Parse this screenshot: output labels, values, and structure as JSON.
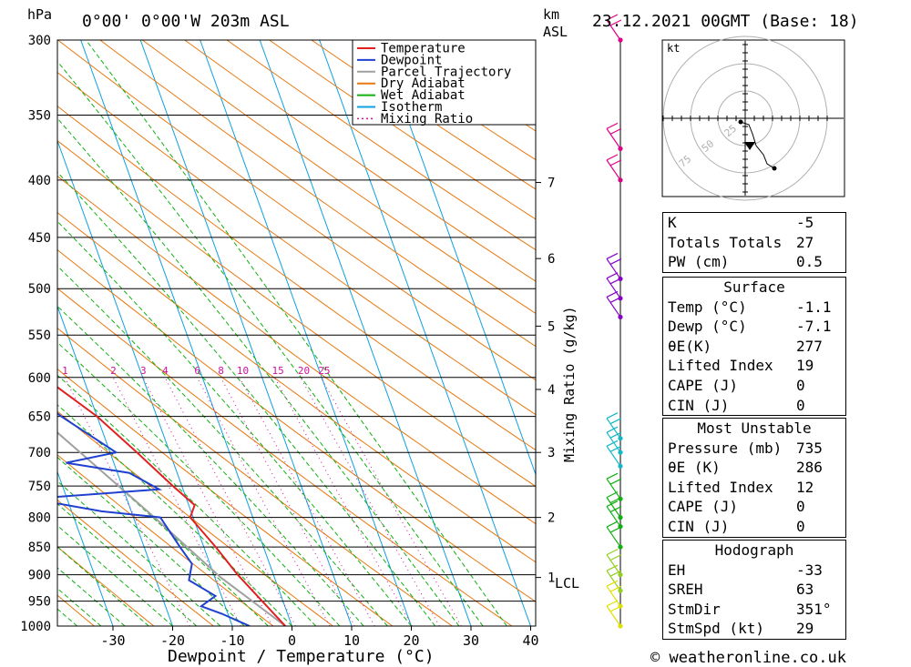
{
  "header": {
    "units_label": "hPa",
    "location": "0°00' 0°00'W 203m ASL",
    "km_label": "km",
    "asl_label": "ASL",
    "date": "23.12.2021 00GMT (Base: 18)"
  },
  "legend": [
    {
      "label": "Temperature",
      "color": "#e02020",
      "dash": false
    },
    {
      "label": "Dewpoint",
      "color": "#2040d0",
      "dash": false
    },
    {
      "label": "Parcel Trajectory",
      "color": "#a0a0a0",
      "dash": false
    },
    {
      "label": "Dry Adiabat",
      "color": "#e87810",
      "dash": false
    },
    {
      "label": "Wet Adiabat",
      "color": "#10b010",
      "dash": false
    },
    {
      "label": "Isotherm",
      "color": "#10a0e0",
      "dash": false
    },
    {
      "label": "Mixing Ratio",
      "color": "#d010a0",
      "dash": true
    }
  ],
  "chart_data": {
    "type": "skew-t",
    "xlabel": "Dewpoint / Temperature (°C)",
    "ylabel": "hPa",
    "right_axis_label": "Mixing Ratio (g/kg)",
    "pressure_levels": [
      300,
      350,
      400,
      450,
      500,
      550,
      600,
      650,
      700,
      750,
      800,
      850,
      900,
      950,
      1000
    ],
    "x_ticks": [
      -30,
      -20,
      -10,
      0,
      10,
      20,
      30,
      40
    ],
    "height_km": [
      {
        "label": "7",
        "p": 402
      },
      {
        "label": "6",
        "p": 470
      },
      {
        "label": "5",
        "p": 540
      },
      {
        "label": "4",
        "p": 615
      },
      {
        "label": "3",
        "p": 700
      },
      {
        "label": "2",
        "p": 800
      },
      {
        "label": "1",
        "p": 905
      }
    ],
    "lcl_label": "LCL",
    "mixing_ratio_labels": [
      "1",
      "2",
      "3",
      "4",
      "6",
      "8",
      "10",
      "15",
      "20",
      "25"
    ],
    "mixing_ratio_values": [
      1,
      2,
      3,
      4,
      6,
      8,
      10,
      15,
      20,
      25
    ],
    "temperature": [
      {
        "p": 1000,
        "t": -1.1
      },
      {
        "p": 950,
        "t": -3.5
      },
      {
        "p": 900,
        "t": -6.0
      },
      {
        "p": 850,
        "t": -8.0
      },
      {
        "p": 800,
        "t": -10.5
      },
      {
        "p": 780,
        "t": -9.0
      },
      {
        "p": 750,
        "t": -11.5
      },
      {
        "p": 700,
        "t": -15.5
      },
      {
        "p": 650,
        "t": -20.0
      },
      {
        "p": 600,
        "t": -26.5
      },
      {
        "p": 590,
        "t": -28.5
      },
      {
        "p": 570,
        "t": -28.0
      },
      {
        "p": 550,
        "t": -30.0
      },
      {
        "p": 500,
        "t": -34.5
      },
      {
        "p": 460,
        "t": -40.0
      },
      {
        "p": 400,
        "t": -47.0
      },
      {
        "p": 350,
        "t": -53.0
      },
      {
        "p": 300,
        "t": -59.0
      }
    ],
    "dewpoint": [
      {
        "p": 1000,
        "t": -7.1
      },
      {
        "p": 975,
        "t": -11.0
      },
      {
        "p": 960,
        "t": -14.0
      },
      {
        "p": 940,
        "t": -11.0
      },
      {
        "p": 910,
        "t": -14.5
      },
      {
        "p": 880,
        "t": -13.0
      },
      {
        "p": 850,
        "t": -14.0
      },
      {
        "p": 800,
        "t": -15.5
      },
      {
        "p": 790,
        "t": -25.0
      },
      {
        "p": 770,
        "t": -36.0
      },
      {
        "p": 755,
        "t": -14.0
      },
      {
        "p": 730,
        "t": -18.0
      },
      {
        "p": 715,
        "t": -28.0
      },
      {
        "p": 700,
        "t": -19.0
      },
      {
        "p": 650,
        "t": -26.0
      },
      {
        "p": 590,
        "t": -33.0
      },
      {
        "p": 560,
        "t": -41.0
      },
      {
        "p": 510,
        "t": -46.0
      },
      {
        "p": 500,
        "t": -44.0
      },
      {
        "p": 470,
        "t": -55.0
      },
      {
        "p": 435,
        "t": -45.0
      },
      {
        "p": 400,
        "t": -54.0
      },
      {
        "p": 300,
        "t": -73.0
      }
    ],
    "parcel": [
      {
        "p": 1000,
        "t": -1.1
      },
      {
        "p": 905,
        "t": -9.0
      },
      {
        "p": 800,
        "t": -16.5
      },
      {
        "p": 700,
        "t": -25.0
      },
      {
        "p": 600,
        "t": -35.0
      },
      {
        "p": 500,
        "t": -48.0
      },
      {
        "p": 400,
        "t": -63.0
      },
      {
        "p": 300,
        "t": -82.0
      }
    ],
    "wind_levels_hpa": [
      300,
      375,
      400,
      490,
      510,
      530,
      680,
      700,
      720,
      770,
      800,
      815,
      850,
      900,
      930,
      960,
      1000
    ]
  },
  "hodograph": {
    "unit_label": "kt",
    "ring_labels": [
      "25",
      "50",
      "75"
    ]
  },
  "indices": {
    "k": {
      "label": "K",
      "value": "-5"
    },
    "totals": {
      "label": "Totals Totals",
      "value": "27"
    },
    "pw": {
      "label": "PW (cm)",
      "value": "0.5"
    },
    "surface": {
      "title": "Surface",
      "rows": [
        {
          "label": "Temp (°C)",
          "value": "-1.1"
        },
        {
          "label": "Dewp (°C)",
          "value": "-7.1"
        },
        {
          "label": "θE(K)",
          "value": "277"
        },
        {
          "label": "Lifted Index",
          "value": "19"
        },
        {
          "label": "CAPE (J)",
          "value": "0"
        },
        {
          "label": "CIN (J)",
          "value": "0"
        }
      ]
    },
    "most_unstable": {
      "title": "Most Unstable",
      "rows": [
        {
          "label": "Pressure (mb)",
          "value": "735"
        },
        {
          "label": "θE (K)",
          "value": "286"
        },
        {
          "label": "Lifted Index",
          "value": "12"
        },
        {
          "label": "CAPE (J)",
          "value": "0"
        },
        {
          "label": "CIN (J)",
          "value": "0"
        }
      ]
    },
    "hodograph_box": {
      "title": "Hodograph",
      "rows": [
        {
          "label": "EH",
          "value": "-33"
        },
        {
          "label": "SREH",
          "value": "63"
        },
        {
          "label": "StmDir",
          "value": "351°"
        },
        {
          "label": "StmSpd (kt)",
          "value": "29"
        }
      ]
    }
  },
  "footer": {
    "copyright": "© weatheronline.co.uk"
  }
}
